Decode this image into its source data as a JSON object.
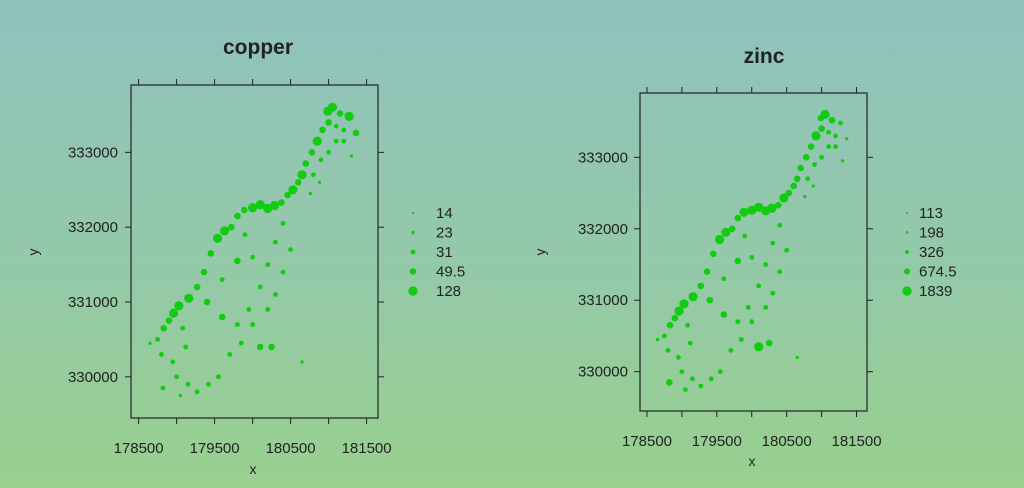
{
  "chart_data": [
    {
      "type": "scatter",
      "title": "copper",
      "xlabel": "x",
      "ylabel": "y",
      "xlim": [
        178400,
        181650
      ],
      "ylim": [
        329450,
        333900
      ],
      "xticks": [
        178500,
        179500,
        180500,
        181500
      ],
      "xtick_labels": [
        "178500",
        "179500",
        "180500",
        "181500"
      ],
      "yticks": [
        330000,
        331000,
        332000,
        333000
      ],
      "ytick_labels": [
        "330000",
        "331000",
        "332000",
        "333000"
      ],
      "minor_xticks": [
        179000,
        180000,
        181000
      ],
      "legend": {
        "placement": "right",
        "labels": [
          "14",
          "23",
          "31",
          "49.5",
          "128"
        ]
      },
      "points": [
        [
          181050,
          333600,
          5
        ],
        [
          180990,
          333550,
          5
        ],
        [
          181150,
          333520,
          4
        ],
        [
          181270,
          333480,
          5
        ],
        [
          181360,
          333260,
          4
        ],
        [
          181200,
          333300,
          3
        ],
        [
          181100,
          333350,
          3
        ],
        [
          181000,
          333400,
          4
        ],
        [
          180920,
          333300,
          4
        ],
        [
          180850,
          333150,
          5
        ],
        [
          180780,
          333000,
          4
        ],
        [
          180700,
          332850,
          4
        ],
        [
          180650,
          332700,
          5
        ],
        [
          180600,
          332600,
          4
        ],
        [
          180530,
          332500,
          5
        ],
        [
          180460,
          332430,
          4
        ],
        [
          180380,
          332330,
          4
        ],
        [
          180290,
          332290,
          5
        ],
        [
          180200,
          332250,
          5
        ],
        [
          180100,
          332300,
          5
        ],
        [
          180000,
          332260,
          5
        ],
        [
          179890,
          332230,
          4
        ],
        [
          179800,
          332150,
          4
        ],
        [
          179720,
          332000,
          4
        ],
        [
          179630,
          331950,
          5
        ],
        [
          179540,
          331850,
          5
        ],
        [
          179450,
          331650,
          4
        ],
        [
          179360,
          331400,
          4
        ],
        [
          179270,
          331200,
          4
        ],
        [
          179160,
          331050,
          5
        ],
        [
          179030,
          330950,
          5
        ],
        [
          178960,
          330850,
          5
        ],
        [
          178900,
          330750,
          4
        ],
        [
          178830,
          330650,
          4
        ],
        [
          178750,
          330500,
          3
        ],
        [
          178650,
          330450,
          2
        ],
        [
          178800,
          330300,
          3
        ],
        [
          178950,
          330200,
          3
        ],
        [
          179080,
          330650,
          3
        ],
        [
          179120,
          330400,
          3
        ],
        [
          179000,
          330000,
          3
        ],
        [
          179150,
          329900,
          3
        ],
        [
          179270,
          329800,
          3
        ],
        [
          179420,
          329900,
          3
        ],
        [
          179550,
          330000,
          3
        ],
        [
          179700,
          330300,
          3
        ],
        [
          179800,
          330700,
          3
        ],
        [
          179950,
          330900,
          3
        ],
        [
          180100,
          331200,
          3
        ],
        [
          180200,
          331500,
          3
        ],
        [
          180300,
          331800,
          3
        ],
        [
          180400,
          332050,
          3
        ],
        [
          180300,
          331100,
          3
        ],
        [
          180200,
          330900,
          3
        ],
        [
          180000,
          330700,
          3
        ],
        [
          180100,
          330400,
          4
        ],
        [
          180250,
          330400,
          4
        ],
        [
          180650,
          330200,
          2
        ],
        [
          178820,
          329850,
          3
        ],
        [
          179050,
          329750,
          2
        ],
        [
          181100,
          333150,
          3
        ],
        [
          181000,
          333000,
          3
        ],
        [
          180900,
          332900,
          3
        ],
        [
          180800,
          332700,
          3
        ],
        [
          181200,
          333150,
          3
        ],
        [
          180880,
          332600,
          2
        ],
        [
          180760,
          332450,
          2
        ],
        [
          181300,
          332950,
          2
        ],
        [
          179600,
          331300,
          3
        ],
        [
          179800,
          331550,
          4
        ],
        [
          179400,
          331000,
          4
        ],
        [
          179600,
          330800,
          4
        ],
        [
          179850,
          330450,
          3
        ],
        [
          180500,
          331700,
          3
        ],
        [
          180400,
          331400,
          3
        ],
        [
          180000,
          331600,
          3
        ],
        [
          179900,
          331900,
          3
        ]
      ]
    },
    {
      "type": "scatter",
      "title": "zinc",
      "xlabel": "x",
      "ylabel": "y",
      "xlim": [
        178400,
        181650
      ],
      "ylim": [
        329450,
        333900
      ],
      "xticks": [
        178500,
        179500,
        180500,
        181500
      ],
      "xtick_labels": [
        "178500",
        "179500",
        "180500",
        "181500"
      ],
      "yticks": [
        330000,
        331000,
        332000,
        333000
      ],
      "ytick_labels": [
        "330000",
        "331000",
        "332000",
        "333000"
      ],
      "minor_xticks": [
        179000,
        180000,
        181000
      ],
      "legend": {
        "placement": "right",
        "labels": [
          "113",
          "198",
          "326",
          "674.5",
          "1839"
        ]
      },
      "points": [
        [
          181050,
          333600,
          5
        ],
        [
          180990,
          333550,
          4
        ],
        [
          181150,
          333520,
          4
        ],
        [
          181270,
          333480,
          3
        ],
        [
          181360,
          333260,
          2
        ],
        [
          181200,
          333300,
          3
        ],
        [
          181100,
          333350,
          3
        ],
        [
          181000,
          333400,
          4
        ],
        [
          180920,
          333300,
          5
        ],
        [
          180850,
          333150,
          4
        ],
        [
          180780,
          333000,
          4
        ],
        [
          180700,
          332850,
          4
        ],
        [
          180650,
          332700,
          4
        ],
        [
          180600,
          332600,
          4
        ],
        [
          180530,
          332500,
          4
        ],
        [
          180460,
          332430,
          5
        ],
        [
          180380,
          332330,
          4
        ],
        [
          180290,
          332290,
          5
        ],
        [
          180200,
          332250,
          5
        ],
        [
          180100,
          332300,
          5
        ],
        [
          180000,
          332260,
          5
        ],
        [
          179890,
          332230,
          5
        ],
        [
          179800,
          332150,
          4
        ],
        [
          179720,
          332000,
          4
        ],
        [
          179630,
          331950,
          5
        ],
        [
          179540,
          331850,
          5
        ],
        [
          179450,
          331650,
          4
        ],
        [
          179360,
          331400,
          4
        ],
        [
          179270,
          331200,
          4
        ],
        [
          179160,
          331050,
          5
        ],
        [
          179030,
          330950,
          5
        ],
        [
          178960,
          330850,
          5
        ],
        [
          178900,
          330750,
          4
        ],
        [
          178830,
          330650,
          4
        ],
        [
          178750,
          330500,
          3
        ],
        [
          178650,
          330450,
          2
        ],
        [
          178800,
          330300,
          3
        ],
        [
          178950,
          330200,
          3
        ],
        [
          179080,
          330650,
          3
        ],
        [
          179120,
          330400,
          3
        ],
        [
          179000,
          330000,
          3
        ],
        [
          179150,
          329900,
          3
        ],
        [
          179270,
          329800,
          3
        ],
        [
          179420,
          329900,
          3
        ],
        [
          179550,
          330000,
          3
        ],
        [
          179700,
          330300,
          3
        ],
        [
          179800,
          330700,
          3
        ],
        [
          179950,
          330900,
          3
        ],
        [
          180100,
          331200,
          3
        ],
        [
          180200,
          331500,
          3
        ],
        [
          180300,
          331800,
          3
        ],
        [
          180400,
          332050,
          3
        ],
        [
          180300,
          331100,
          3
        ],
        [
          180200,
          330900,
          3
        ],
        [
          180000,
          330700,
          3
        ],
        [
          180100,
          330350,
          5
        ],
        [
          180250,
          330400,
          4
        ],
        [
          180650,
          330200,
          2
        ],
        [
          178820,
          329850,
          4
        ],
        [
          179050,
          329750,
          3
        ],
        [
          181100,
          333150,
          3
        ],
        [
          181000,
          333000,
          3
        ],
        [
          180900,
          332900,
          3
        ],
        [
          180800,
          332700,
          3
        ],
        [
          181200,
          333150,
          3
        ],
        [
          180880,
          332600,
          2
        ],
        [
          180760,
          332450,
          2
        ],
        [
          181300,
          332950,
          2
        ],
        [
          179600,
          331300,
          3
        ],
        [
          179800,
          331550,
          4
        ],
        [
          179400,
          331000,
          4
        ],
        [
          179600,
          330800,
          4
        ],
        [
          179850,
          330450,
          3
        ],
        [
          180500,
          331700,
          3
        ],
        [
          180400,
          331400,
          3
        ],
        [
          180000,
          331600,
          3
        ],
        [
          179900,
          331900,
          3
        ]
      ]
    }
  ],
  "colors": {
    "points": "#11cc11",
    "text": "#222222",
    "axis": "#222222"
  }
}
